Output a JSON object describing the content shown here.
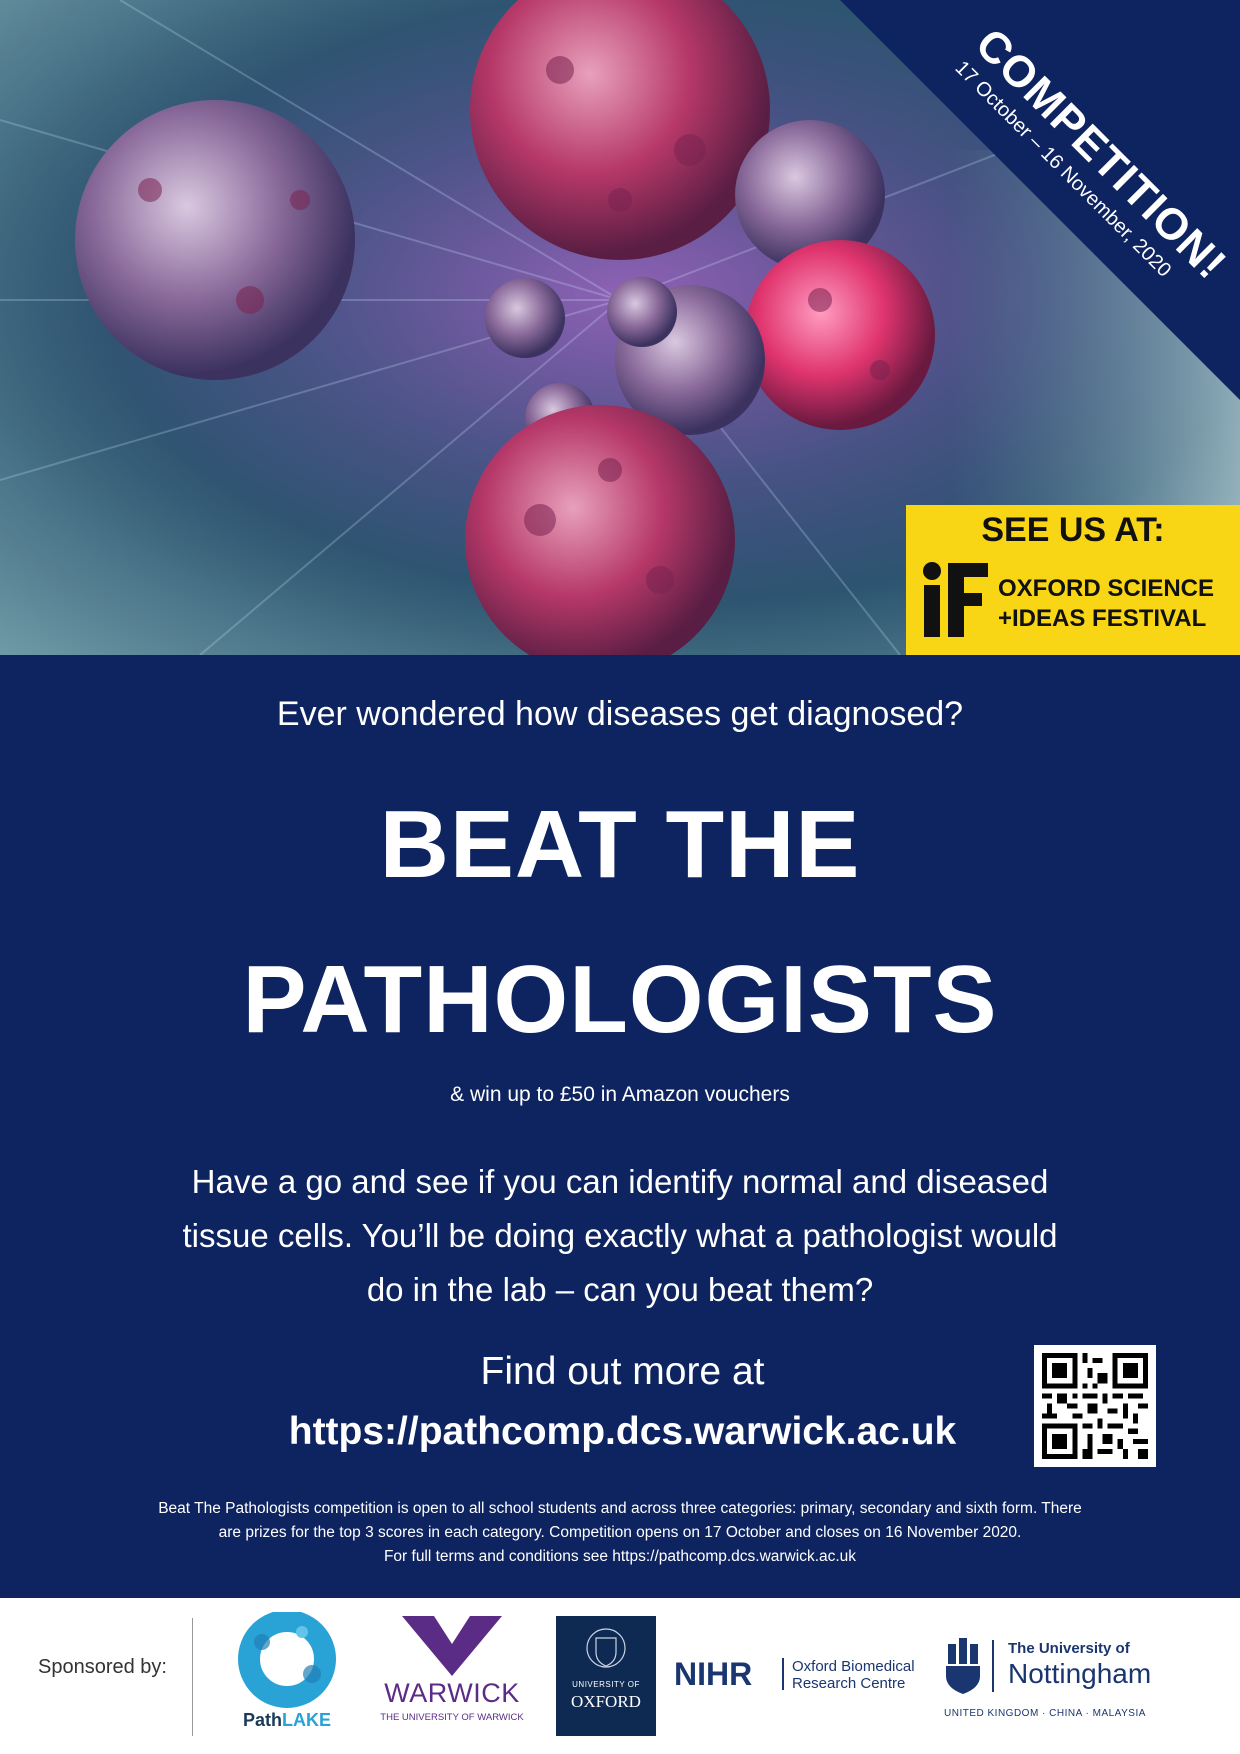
{
  "banner": {
    "competition": "COMPETITION!",
    "dates": "17 October – 16 November, 2020"
  },
  "festival": {
    "see_us": "SEE US AT:",
    "line1": "OXFORD SCIENCE",
    "line2": "+IDEAS FESTIVAL"
  },
  "main": {
    "intro": "Ever wondered how diseases get diagnosed?",
    "headline_line1": "BEAT THE",
    "headline_line2": "PATHOLOGISTS",
    "prize": "& win up to £50 in Amazon vouchers",
    "description": "Have a go and see if you can identify normal and diseased tissue cells. You’ll be doing exactly what a pathologist would do in the lab – can you beat them?",
    "find_out": "Find out more at",
    "url": "https://pathcomp.dcs.warwick.ac.uk",
    "terms_line1": "Beat The Pathologists competition is open to all school students and across three categories: primary, secondary and sixth form. There",
    "terms_line2": "are prizes for the top 3 scores in each category. Competition opens on 17 October and closes on 16 November 2020.",
    "terms_line3": "For full terms and conditions see https://pathcomp.dcs.warwick.ac.uk"
  },
  "sponsors": {
    "label": "Sponsored by:",
    "pathlake_a": "Path",
    "pathlake_b": "LAKE",
    "warwick_name": "WARWICK",
    "warwick_sub": "THE UNIVERSITY OF WARWICK",
    "oxford_small": "UNIVERSITY OF",
    "oxford_big": "OXFORD",
    "nihr": "NIHR",
    "nihr_line1": "Oxford Biomedical",
    "nihr_line2": "Research Centre",
    "notts_line1": "The University of",
    "notts_line2": "Nottingham",
    "notts_sub": "UNITED KINGDOM · CHINA · MALAYSIA"
  },
  "colors": {
    "navy": "#0e2460",
    "yellow": "#f8d515",
    "warwick_purple": "#5b2c86"
  },
  "icons": [
    "cells-illustration",
    "if-festival-logo",
    "qr-code-icon",
    "pathlake-logo",
    "warwick-logo",
    "oxford-crest-icon",
    "nottingham-crest-icon"
  ]
}
